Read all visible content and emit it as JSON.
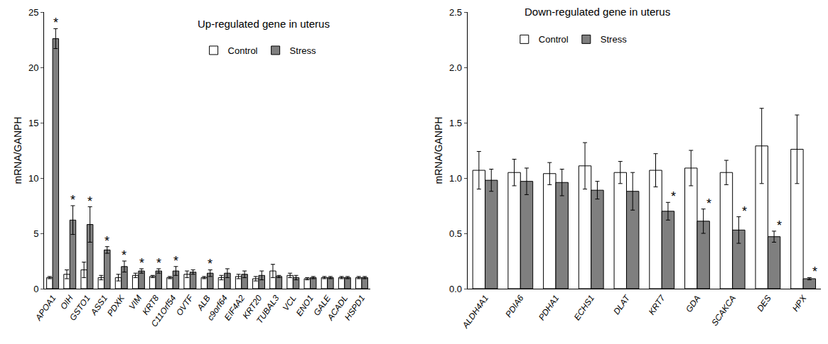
{
  "chart_data": [
    {
      "type": "bar",
      "title": "Up-regulated gene in uterus",
      "y_label": "mRNA/GANPH",
      "categories": [
        "APOA1",
        "OIH",
        "GSTO1",
        "ASS1",
        "PDXK",
        "VIM",
        "KRT8",
        "C11Orf54",
        "OVTF",
        "ALB",
        "c9orf64",
        "EIF4A2",
        "KRT20",
        "TUBAL3",
        "VCL",
        "ENO1",
        "GALE",
        "ACADL",
        "HSPD1"
      ],
      "series": [
        {
          "name": "Control",
          "color": "#ffffff",
          "values": [
            1.0,
            1.3,
            1.7,
            1.0,
            1.0,
            1.2,
            1.1,
            1.0,
            1.3,
            1.0,
            1.0,
            1.1,
            0.9,
            1.6,
            1.2,
            0.9,
            1.0,
            1.0,
            1.0
          ],
          "errors": [
            0.1,
            0.4,
            0.7,
            0.2,
            0.3,
            0.2,
            0.1,
            0.1,
            0.3,
            0.1,
            0.2,
            0.2,
            0.2,
            0.6,
            0.2,
            0.1,
            0.1,
            0.1,
            0.1
          ]
        },
        {
          "name": "Stress",
          "color": "#7f7f7f",
          "values": [
            22.6,
            6.2,
            5.8,
            3.5,
            2.0,
            1.6,
            1.6,
            1.6,
            1.5,
            1.4,
            1.4,
            1.3,
            1.2,
            1.1,
            1.0,
            1.0,
            1.0,
            1.0,
            1.0
          ],
          "errors": [
            0.9,
            1.3,
            1.6,
            0.3,
            0.5,
            0.2,
            0.2,
            0.4,
            0.2,
            0.3,
            0.4,
            0.3,
            0.4,
            0.1,
            0.2,
            0.1,
            0.1,
            0.1,
            0.1
          ]
        }
      ],
      "ylim": [
        0,
        25
      ],
      "yticks": [
        0,
        5,
        10,
        15,
        20,
        25
      ],
      "legend": "top",
      "annotations": [
        {
          "category": "APOA1",
          "series": "Stress",
          "text": "*"
        },
        {
          "category": "OIH",
          "series": "Stress",
          "text": "*"
        },
        {
          "category": "GSTO1",
          "series": "Stress",
          "text": "*"
        },
        {
          "category": "ASS1",
          "series": "Stress",
          "text": "*"
        },
        {
          "category": "PDXK",
          "series": "Stress",
          "text": "*"
        },
        {
          "category": "VIM",
          "series": "Stress",
          "text": "*"
        },
        {
          "category": "KRT8",
          "series": "Stress",
          "text": "*"
        },
        {
          "category": "C11Orf54",
          "series": "Stress",
          "text": "*"
        },
        {
          "category": "ALB",
          "series": "Stress",
          "text": "*"
        }
      ]
    },
    {
      "type": "bar",
      "title": "Down-regulated gene in uterus",
      "y_label": "mRNA/GANPH",
      "categories": [
        "ALDH4A1",
        "PDIA6",
        "PDHA1",
        "ECHS1",
        "DLAT",
        "KRT7",
        "GDA",
        "SCAKCA",
        "DES",
        "HPX"
      ],
      "series": [
        {
          "name": "Control",
          "color": "#ffffff",
          "values": [
            1.07,
            1.05,
            1.04,
            1.11,
            1.05,
            1.07,
            1.09,
            1.05,
            1.29,
            1.26
          ],
          "errors": [
            0.17,
            0.12,
            0.1,
            0.21,
            0.1,
            0.15,
            0.16,
            0.11,
            0.34,
            0.31
          ]
        },
        {
          "name": "Stress",
          "color": "#7f7f7f",
          "values": [
            0.98,
            0.97,
            0.96,
            0.89,
            0.88,
            0.7,
            0.61,
            0.53,
            0.47,
            0.09
          ],
          "errors": [
            0.1,
            0.12,
            0.12,
            0.08,
            0.17,
            0.08,
            0.11,
            0.12,
            0.05,
            0.01
          ]
        }
      ],
      "ylim": [
        0,
        2.5
      ],
      "yticks": [
        {
          "value": 0,
          "label": "0.0"
        },
        0.5,
        {
          "value": 1,
          "label": "1.0"
        },
        1.5,
        {
          "value": 2,
          "label": "2.0"
        },
        2.5
      ],
      "legend": "top",
      "annotations": [
        {
          "category": "KRT7",
          "series": "Stress",
          "text": "*"
        },
        {
          "category": "GDA",
          "series": "Stress",
          "text": "*"
        },
        {
          "category": "SCAKCA",
          "series": "Stress",
          "text": "*"
        },
        {
          "category": "DES",
          "series": "Stress",
          "text": "*"
        },
        {
          "category": "HPX",
          "series": "Stress",
          "text": "*"
        }
      ]
    }
  ]
}
